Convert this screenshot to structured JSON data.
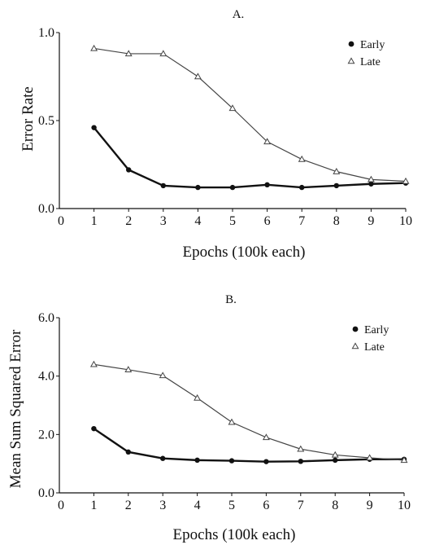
{
  "chart_data": [
    {
      "type": "line",
      "title": "A.",
      "xlabel": "Epochs (100k each)",
      "ylabel": "Error Rate",
      "xlim": [
        0,
        10
      ],
      "ylim": [
        0,
        1
      ],
      "xticks": [
        "0",
        "1",
        "2",
        "3",
        "4",
        "5",
        "6",
        "7",
        "8",
        "9",
        "10"
      ],
      "yticks": [
        "0.0",
        "0.5",
        "1.0"
      ],
      "legend_position": "top-right",
      "grid": false,
      "x": [
        1,
        2,
        3,
        4,
        5,
        6,
        7,
        8,
        9,
        10
      ],
      "series": [
        {
          "name": "Early",
          "marker": "filled-circle",
          "color": "#111111",
          "values": [
            0.46,
            0.22,
            0.13,
            0.12,
            0.12,
            0.135,
            0.12,
            0.13,
            0.14,
            0.145
          ]
        },
        {
          "name": "Late",
          "marker": "open-triangle",
          "color": "#444444",
          "values": [
            0.91,
            0.88,
            0.88,
            0.75,
            0.57,
            0.38,
            0.28,
            0.21,
            0.165,
            0.155
          ]
        }
      ]
    },
    {
      "type": "line",
      "title": "B.",
      "xlabel": "Epochs (100k each)",
      "ylabel": "Mean Sum Squared Error",
      "xlim": [
        0,
        10
      ],
      "ylim": [
        0,
        6
      ],
      "xticks": [
        "0",
        "1",
        "2",
        "3",
        "4",
        "5",
        "6",
        "7",
        "8",
        "9",
        "10"
      ],
      "yticks": [
        "0.0",
        "2.0",
        "4.0",
        "6.0"
      ],
      "legend_position": "top-right",
      "grid": false,
      "x": [
        1,
        2,
        3,
        4,
        5,
        6,
        7,
        8,
        9,
        10
      ],
      "series": [
        {
          "name": "Early",
          "marker": "filled-circle",
          "color": "#111111",
          "values": [
            2.2,
            1.4,
            1.18,
            1.12,
            1.1,
            1.07,
            1.08,
            1.12,
            1.15,
            1.15
          ]
        },
        {
          "name": "Late",
          "marker": "open-triangle",
          "color": "#444444",
          "values": [
            4.4,
            4.22,
            4.02,
            3.25,
            2.42,
            1.9,
            1.5,
            1.3,
            1.2,
            1.12
          ]
        }
      ]
    }
  ]
}
